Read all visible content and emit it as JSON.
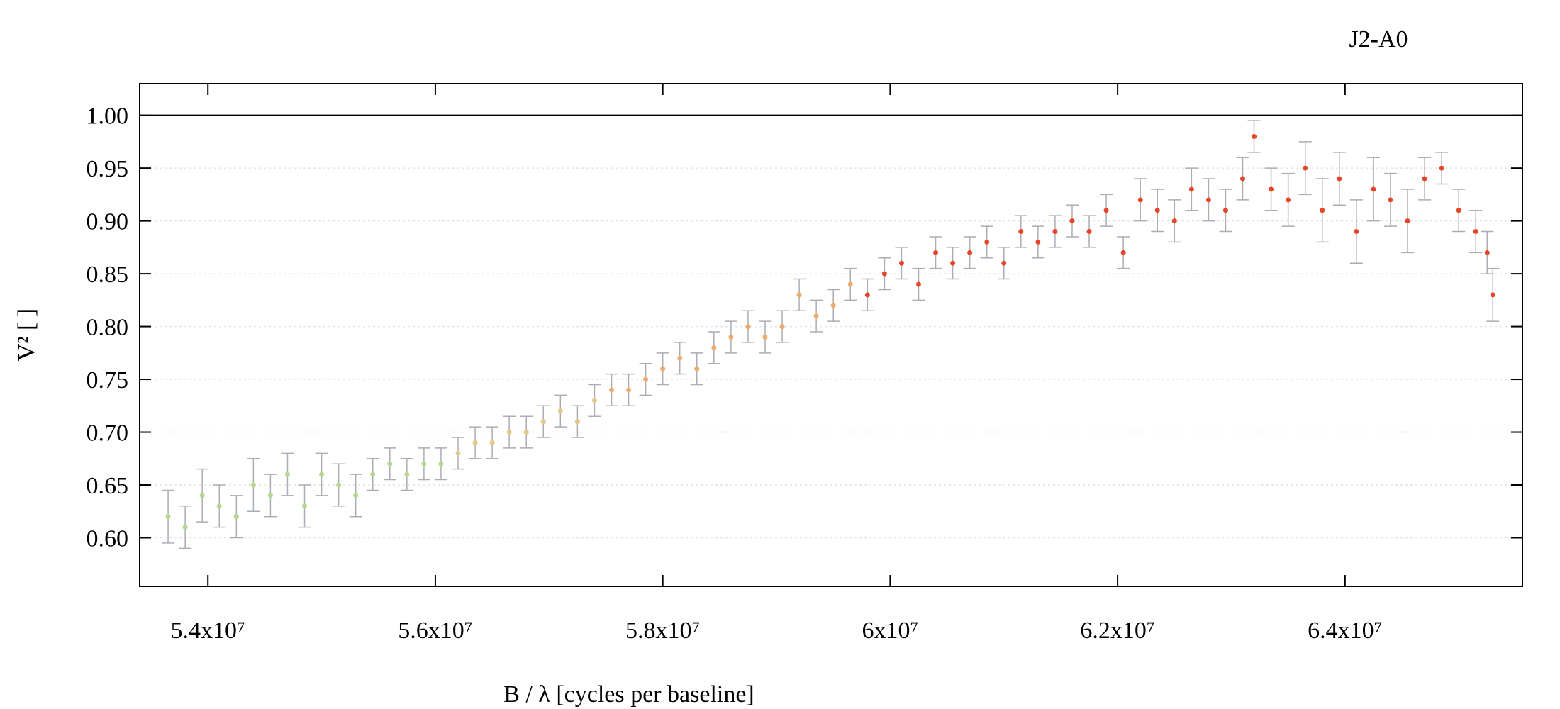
{
  "chart_data": {
    "type": "scatter",
    "title": "J2-A0",
    "xlabel": "B / λ [cycles per baseline]",
    "ylabel": "V² [ ]",
    "xlim": [
      53400000,
      65560000
    ],
    "ylim": [
      0.554,
      1.03
    ],
    "xticks": [
      {
        "value": 54000000,
        "label": "5.4x10⁷"
      },
      {
        "value": 56000000,
        "label": "5.6x10⁷"
      },
      {
        "value": 58000000,
        "label": "5.8x10⁷"
      },
      {
        "value": 60000000,
        "label": "6x10⁷"
      },
      {
        "value": 62000000,
        "label": "6.2x10⁷"
      },
      {
        "value": 64000000,
        "label": "6.4x10⁷"
      }
    ],
    "yticks": [
      {
        "value": 0.6,
        "label": "0.60"
      },
      {
        "value": 0.65,
        "label": "0.65"
      },
      {
        "value": 0.7,
        "label": "0.70"
      },
      {
        "value": 0.75,
        "label": "0.75"
      },
      {
        "value": 0.8,
        "label": "0.80"
      },
      {
        "value": 0.85,
        "label": "0.85"
      },
      {
        "value": 0.9,
        "label": "0.90"
      },
      {
        "value": 0.95,
        "label": "0.95"
      },
      {
        "value": 1.0,
        "label": "1.00"
      }
    ],
    "grid": true,
    "hline": 1.0,
    "errorbar_color": "#a9adb5",
    "series": [
      {
        "color": "#b5d98c",
        "x": [
          53650000,
          53800000,
          53950000,
          54100000,
          54250000,
          54400000,
          54550000,
          54700000,
          54850000,
          55000000,
          55150000,
          55300000,
          55450000,
          55600000,
          55750000,
          55900000,
          56050000
        ],
        "values": [
          0.62,
          0.61,
          0.64,
          0.63,
          0.62,
          0.65,
          0.64,
          0.66,
          0.63,
          0.66,
          0.65,
          0.64,
          0.66,
          0.67,
          0.66,
          0.67,
          0.67
        ],
        "errors": [
          0.025,
          0.02,
          0.025,
          0.02,
          0.02,
          0.025,
          0.02,
          0.02,
          0.02,
          0.02,
          0.02,
          0.02,
          0.015,
          0.015,
          0.015,
          0.015,
          0.015
        ]
      },
      {
        "color": "#e2c98a",
        "x": [
          56200000,
          56350000,
          56500000,
          56650000,
          56800000,
          56950000,
          57100000,
          57250000,
          57400000
        ],
        "values": [
          0.68,
          0.69,
          0.69,
          0.7,
          0.7,
          0.71,
          0.72,
          0.71,
          0.73
        ],
        "errors": [
          0.015,
          0.015,
          0.015,
          0.015,
          0.015,
          0.015,
          0.015,
          0.015,
          0.015
        ]
      },
      {
        "color": "#f0aa6a",
        "x": [
          57550000,
          57700000,
          57850000,
          58000000,
          58150000,
          58300000,
          58450000,
          58600000,
          58750000,
          58900000,
          59050000,
          59200000,
          59350000,
          59500000,
          59650000
        ],
        "values": [
          0.74,
          0.74,
          0.75,
          0.76,
          0.77,
          0.76,
          0.78,
          0.79,
          0.8,
          0.79,
          0.8,
          0.83,
          0.81,
          0.82,
          0.84
        ],
        "errors": [
          0.015,
          0.015,
          0.015,
          0.015,
          0.015,
          0.015,
          0.015,
          0.015,
          0.015,
          0.015,
          0.015,
          0.015,
          0.015,
          0.015,
          0.015
        ]
      },
      {
        "color": "#e8452a",
        "x": [
          59800000,
          59950000,
          60100000,
          60250000,
          60400000,
          60550000,
          60700000,
          60850000,
          61000000,
          61150000,
          61300000,
          61450000,
          61600000,
          61750000,
          61900000,
          62050000,
          62200000,
          62350000,
          62500000,
          62650000,
          62800000,
          62950000,
          63100000,
          63200000,
          63350000,
          63500000,
          63650000,
          63800000,
          63950000,
          64100000,
          64250000,
          64400000,
          64550000,
          64700000,
          64850000,
          65000000,
          65150000,
          65250000,
          65300000
        ],
        "values": [
          0.83,
          0.85,
          0.86,
          0.84,
          0.87,
          0.86,
          0.87,
          0.88,
          0.86,
          0.89,
          0.88,
          0.89,
          0.9,
          0.89,
          0.91,
          0.87,
          0.92,
          0.91,
          0.9,
          0.93,
          0.92,
          0.91,
          0.94,
          0.98,
          0.93,
          0.92,
          0.95,
          0.91,
          0.94,
          0.89,
          0.93,
          0.92,
          0.9,
          0.94,
          0.95,
          0.91,
          0.89,
          0.87,
          0.83
        ],
        "errors": [
          0.015,
          0.015,
          0.015,
          0.015,
          0.015,
          0.015,
          0.015,
          0.015,
          0.015,
          0.015,
          0.015,
          0.015,
          0.015,
          0.015,
          0.015,
          0.015,
          0.02,
          0.02,
          0.02,
          0.02,
          0.02,
          0.02,
          0.02,
          0.015,
          0.02,
          0.025,
          0.025,
          0.03,
          0.025,
          0.03,
          0.03,
          0.025,
          0.03,
          0.02,
          0.015,
          0.02,
          0.02,
          0.02,
          0.025
        ]
      }
    ]
  }
}
